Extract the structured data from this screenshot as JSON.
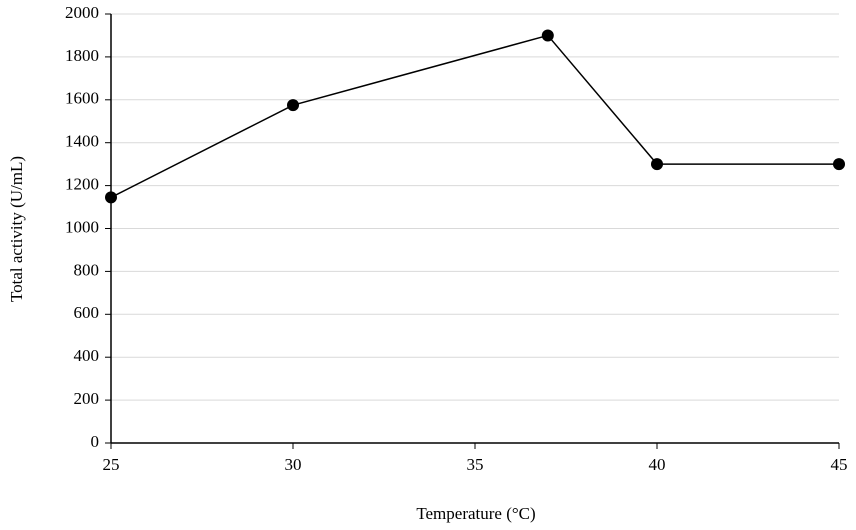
{
  "chart_data": {
    "type": "line",
    "x_label": "Temperature (°C)",
    "y_label": "Total activity (U/mL)",
    "series": [
      {
        "name": "Total activity",
        "color": "#000000",
        "x": [
          25,
          30,
          37,
          40,
          45
        ],
        "values": [
          1145,
          1575,
          1900,
          1300,
          1300
        ]
      }
    ],
    "xlim": [
      25,
      45
    ],
    "xticks": [
      25,
      30,
      35,
      40,
      45
    ],
    "ylim": [
      0,
      2000
    ],
    "yticks": [
      0,
      200,
      400,
      600,
      800,
      1000,
      1200,
      1400,
      1600,
      1800,
      2000
    ],
    "grid": true
  }
}
